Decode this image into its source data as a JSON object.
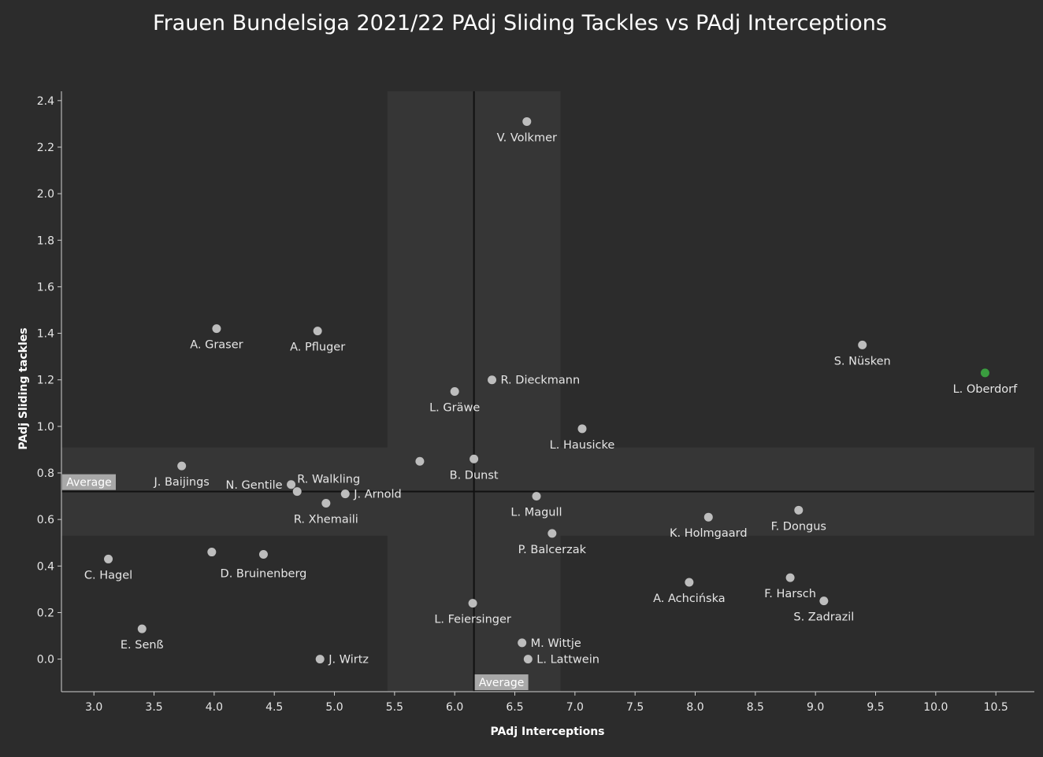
{
  "chart_data": {
    "type": "scatter",
    "title": "Frauen Bundelsiga 2021/22 PAdj Sliding Tackles vs PAdj Interceptions",
    "xlabel": "PAdj Interceptions",
    "ylabel": "PAdj Sliding tackles",
    "xlim": [
      2.73,
      10.82
    ],
    "ylim": [
      -0.14,
      2.44
    ],
    "xticks": [
      "3.0",
      "3.5",
      "4.0",
      "4.5",
      "5.0",
      "5.5",
      "6.0",
      "6.5",
      "7.0",
      "7.5",
      "8.0",
      "8.5",
      "9.0",
      "9.5",
      "10.0",
      "10.5"
    ],
    "yticks": [
      "0.0",
      "0.2",
      "0.4",
      "0.6",
      "0.8",
      "1.0",
      "1.2",
      "1.4",
      "1.6",
      "1.8",
      "2.0",
      "2.2",
      "2.4"
    ],
    "grid": false,
    "average": {
      "x": 6.16,
      "y": 0.72,
      "x_label": "Average",
      "y_label": "Average"
    },
    "average_band": {
      "x": [
        5.44,
        6.88
      ],
      "y": [
        0.53,
        0.91
      ]
    },
    "colors": {
      "background": "#2c2c2c",
      "point": "#bdbdbd",
      "highlight": "#3a9d3f",
      "band": "#363636",
      "avg_line": "#111111",
      "avg_box": "#a8a8a8"
    },
    "points": [
      {
        "name": "V. Volkmer",
        "x": 6.6,
        "y": 2.31,
        "pos": "below"
      },
      {
        "name": "A. Graser",
        "x": 4.02,
        "y": 1.42,
        "pos": "below"
      },
      {
        "name": "A. Pfluger",
        "x": 4.86,
        "y": 1.41,
        "pos": "below"
      },
      {
        "name": "S. Nüsken",
        "x": 9.39,
        "y": 1.35,
        "pos": "below"
      },
      {
        "name": "L. Oberdorf",
        "x": 10.41,
        "y": 1.23,
        "pos": "below",
        "highlight": true
      },
      {
        "name": "R. Dieckmann",
        "x": 6.31,
        "y": 1.2,
        "pos": "right"
      },
      {
        "name": "L. Gräwe",
        "x": 6.0,
        "y": 1.15,
        "pos": "below"
      },
      {
        "name": "L. Hausicke",
        "x": 7.06,
        "y": 0.99,
        "pos": "below"
      },
      {
        "name": "",
        "x": 5.71,
        "y": 0.85,
        "pos": "none"
      },
      {
        "name": "B. Dunst",
        "x": 6.16,
        "y": 0.86,
        "pos": "below"
      },
      {
        "name": "J. Baijings",
        "x": 3.73,
        "y": 0.83,
        "pos": "below"
      },
      {
        "name": "R. Walkling",
        "x": 4.69,
        "y": 0.72,
        "pos": "above-right"
      },
      {
        "name": "N. Gentile",
        "x": 4.64,
        "y": 0.75,
        "pos": "left"
      },
      {
        "name": "J. Arnold",
        "x": 5.09,
        "y": 0.71,
        "pos": "right"
      },
      {
        "name": "R. Xhemaili",
        "x": 4.93,
        "y": 0.67,
        "pos": "below"
      },
      {
        "name": "L. Magull",
        "x": 6.68,
        "y": 0.7,
        "pos": "below"
      },
      {
        "name": "F. Dongus",
        "x": 8.86,
        "y": 0.64,
        "pos": "below"
      },
      {
        "name": "K. Holmgaard",
        "x": 8.11,
        "y": 0.61,
        "pos": "below"
      },
      {
        "name": "P. Balcerzak",
        "x": 6.81,
        "y": 0.54,
        "pos": "below"
      },
      {
        "name": "",
        "x": 3.98,
        "y": 0.46,
        "pos": "none"
      },
      {
        "name": "D. Bruinenberg",
        "x": 4.41,
        "y": 0.45,
        "pos": "below-offset"
      },
      {
        "name": "C. Hagel",
        "x": 3.12,
        "y": 0.43,
        "pos": "below"
      },
      {
        "name": "F. Harsch",
        "x": 8.79,
        "y": 0.35,
        "pos": "below"
      },
      {
        "name": "A. Achcińska",
        "x": 7.95,
        "y": 0.33,
        "pos": "below"
      },
      {
        "name": "S. Zadrazil",
        "x": 9.07,
        "y": 0.25,
        "pos": "below"
      },
      {
        "name": "L. Feiersinger",
        "x": 6.15,
        "y": 0.24,
        "pos": "below"
      },
      {
        "name": "E. Senß",
        "x": 3.4,
        "y": 0.13,
        "pos": "below"
      },
      {
        "name": "M. Wittje",
        "x": 6.56,
        "y": 0.07,
        "pos": "right"
      },
      {
        "name": "J. Wirtz",
        "x": 4.88,
        "y": 0.0,
        "pos": "right"
      },
      {
        "name": "L. Lattwein",
        "x": 6.61,
        "y": 0.0,
        "pos": "right"
      }
    ]
  }
}
